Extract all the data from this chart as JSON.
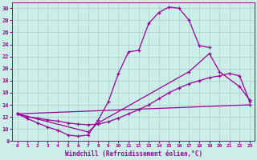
{
  "xlabel": "Windchill (Refroidissement éolien,°C)",
  "bg_color": "#cceee8",
  "grid_color": "#aacccc",
  "line_color": "#990099",
  "xlim": [
    -0.5,
    23.5
  ],
  "ylim": [
    8,
    31
  ],
  "xticks": [
    0,
    1,
    2,
    3,
    4,
    5,
    6,
    7,
    8,
    9,
    10,
    11,
    12,
    13,
    14,
    15,
    16,
    17,
    18,
    19,
    20,
    21,
    22,
    23
  ],
  "yticks": [
    8,
    10,
    12,
    14,
    16,
    18,
    20,
    22,
    24,
    26,
    28,
    30
  ],
  "curve1_x": [
    0,
    1,
    2,
    3,
    4,
    5,
    6,
    7,
    8,
    9,
    10,
    11,
    12,
    13,
    14,
    15,
    16,
    17,
    18,
    19
  ],
  "curve1_y": [
    12.5,
    11.7,
    11.0,
    10.3,
    9.8,
    9.0,
    8.8,
    9.0,
    11.5,
    14.5,
    19.2,
    22.8,
    23.0,
    27.5,
    29.3,
    30.2,
    30.0,
    28.0,
    23.8,
    23.5
  ],
  "curve2_x": [
    0,
    7,
    8,
    17,
    19,
    20,
    22,
    23
  ],
  "curve2_y": [
    12.5,
    9.5,
    11.0,
    19.5,
    22.5,
    19.5,
    17.0,
    14.8
  ],
  "curve3_x": [
    0,
    1,
    2,
    3,
    4,
    5,
    6,
    7,
    8,
    9,
    10,
    11,
    12,
    13,
    14,
    15,
    16,
    17,
    18,
    19,
    20,
    21,
    22,
    23
  ],
  "curve3_y": [
    12.5,
    12.0,
    11.8,
    11.5,
    11.3,
    11.0,
    10.8,
    10.7,
    10.8,
    11.2,
    11.8,
    12.5,
    13.2,
    14.0,
    15.0,
    16.0,
    16.8,
    17.5,
    18.0,
    18.5,
    18.8,
    19.2,
    18.8,
    14.5
  ],
  "curve4_x": [
    0,
    23
  ],
  "curve4_y": [
    12.5,
    14.0
  ]
}
